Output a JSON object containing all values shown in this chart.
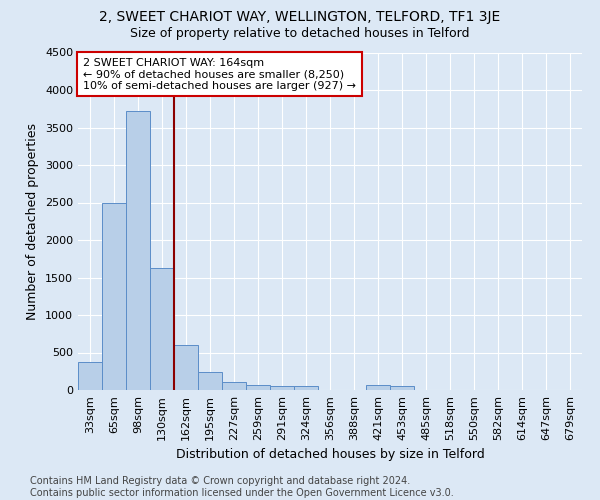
{
  "title": "2, SWEET CHARIOT WAY, WELLINGTON, TELFORD, TF1 3JE",
  "subtitle": "Size of property relative to detached houses in Telford",
  "xlabel": "Distribution of detached houses by size in Telford",
  "ylabel": "Number of detached properties",
  "bar_labels": [
    "33sqm",
    "65sqm",
    "98sqm",
    "130sqm",
    "162sqm",
    "195sqm",
    "227sqm",
    "259sqm",
    "291sqm",
    "324sqm",
    "356sqm",
    "388sqm",
    "421sqm",
    "453sqm",
    "485sqm",
    "518sqm",
    "550sqm",
    "582sqm",
    "614sqm",
    "647sqm",
    "679sqm"
  ],
  "bar_values": [
    375,
    2500,
    3725,
    1625,
    600,
    240,
    110,
    65,
    55,
    55,
    0,
    0,
    65,
    55,
    0,
    0,
    0,
    0,
    0,
    0,
    0
  ],
  "bar_color": "#b8cfe8",
  "bar_edge_color": "#5b8dc8",
  "background_color": "#dce8f5",
  "grid_color": "#ffffff",
  "vline_x_idx": 3.5,
  "vline_color": "#8b0000",
  "annotation_text": "2 SWEET CHARIOT WAY: 164sqm\n← 90% of detached houses are smaller (8,250)\n10% of semi-detached houses are larger (927) →",
  "annotation_box_color": "#ffffff",
  "annotation_box_edge": "#cc0000",
  "ylim": [
    0,
    4500
  ],
  "yticks": [
    0,
    500,
    1000,
    1500,
    2000,
    2500,
    3000,
    3500,
    4000,
    4500
  ],
  "footer": "Contains HM Land Registry data © Crown copyright and database right 2024.\nContains public sector information licensed under the Open Government Licence v3.0.",
  "title_fontsize": 10,
  "subtitle_fontsize": 9,
  "label_fontsize": 9,
  "tick_fontsize": 8,
  "footer_fontsize": 7
}
